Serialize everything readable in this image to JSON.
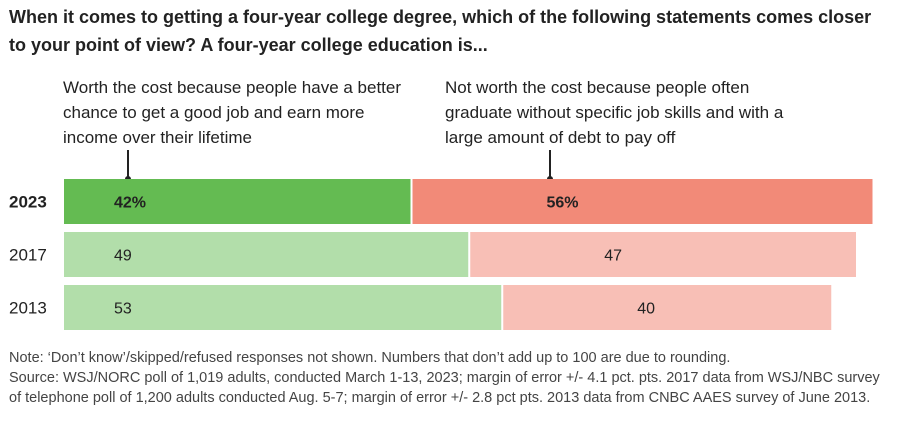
{
  "title": "When it comes to getting a four-year college degree, which of the following statements comes closer to your point of view? A four-year college education is...",
  "chart_data": {
    "type": "bar",
    "orientation": "horizontal",
    "stacked": true,
    "categories": [
      "2023",
      "2017",
      "2013"
    ],
    "series": [
      {
        "name": "Worth the cost because people have a better chance to get a good job and earn more income over their lifetime",
        "values": [
          42,
          49,
          53
        ],
        "labels": [
          "42%",
          "49",
          "53"
        ],
        "colors": [
          "#64bb52",
          "#b2deaa",
          "#b2deaa"
        ]
      },
      {
        "name": "Not worth the cost because people often graduate without specific job skills and with a large amount of debt to pay off",
        "values": [
          56,
          47,
          40
        ],
        "labels": [
          "56%",
          "47",
          "40"
        ],
        "colors": [
          "#f28a78",
          "#f8bfb6",
          "#f8bfb6"
        ]
      }
    ],
    "highlight_category": "2023",
    "xlim": [
      0,
      100
    ],
    "grid": false,
    "legend": "top (direct labels above bars)"
  },
  "notes": {
    "note": "Note: ‘Don’t know’/skipped/refused responses not shown. Numbers that don’t add up to 100 are due to rounding.",
    "source": "Source: WSJ/NORC poll of 1,019 adults, conducted March 1-13, 2023; margin of error +/- 4.1 pct. pts. 2017 data from WSJ/NBC survey of telephone poll of 1,200 adults conducted Aug. 5-7; margin of error +/- 2.8 pct pts. 2013 data from CNBC AAES survey of June 2013."
  }
}
